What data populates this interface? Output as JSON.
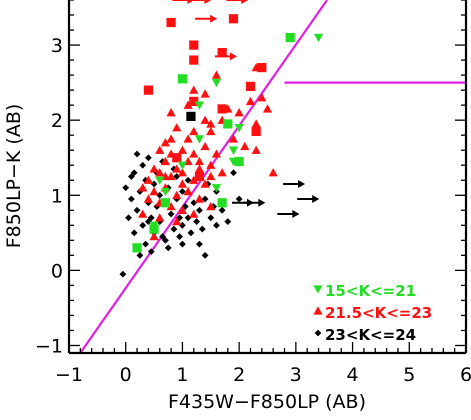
{
  "chart_data": {
    "type": "scatter",
    "title": "",
    "xlabel": "F435W−F850LP (AB)",
    "ylabel": "F850LP−K (AB)",
    "xlim": [
      -1,
      6
    ],
    "ylim": [
      -1.1,
      3.6
    ],
    "x_ticks": [
      -1,
      0,
      1,
      2,
      3,
      4,
      5,
      6
    ],
    "x_tick_labels": [
      "−1",
      "0",
      "1",
      "2",
      "3",
      "4",
      "5",
      "6"
    ],
    "y_ticks": [
      -1,
      0,
      1,
      2,
      3
    ],
    "y_tick_labels": [
      "−1",
      "0",
      "1",
      "2",
      "3"
    ],
    "grid": false,
    "selection_lines": [
      {
        "color": "#e020e0",
        "points": [
          [
            -0.8,
            -1.1
          ],
          [
            3.55,
            3.6
          ]
        ]
      },
      {
        "color": "#e020e0",
        "points": [
          [
            2.8,
            2.5
          ],
          [
            6.0,
            2.5
          ]
        ]
      }
    ],
    "legend": {
      "placement": "bottom-right",
      "entries": [
        {
          "label": "15<K<=21",
          "marker": "triangle-down",
          "color": "#22dd22"
        },
        {
          "label": "21.5<K<=23",
          "marker": "triangle-up",
          "color": "#ff1010"
        },
        {
          "label": "23<K<=24",
          "marker": "diamond",
          "color": "#000000"
        }
      ]
    },
    "series": [
      {
        "name": "15<K<=21",
        "color": "#22dd22",
        "marker": "triangle-down",
        "points": [
          [
            3.4,
            3.1
          ],
          [
            1.6,
            2.5
          ],
          [
            1.3,
            2.2
          ],
          [
            2.0,
            1.9
          ],
          [
            1.3,
            1.75
          ],
          [
            1.9,
            1.6
          ],
          [
            1.9,
            1.45
          ],
          [
            1.0,
            1.4
          ],
          [
            0.6,
            1.2
          ],
          [
            0.7,
            1.05
          ],
          [
            0.5,
            0.6
          ],
          [
            1.6,
            1.1
          ]
        ]
      },
      {
        "name": "15<K<=21",
        "color": "#22dd22",
        "marker": "square",
        "points": [
          [
            2.9,
            3.1
          ],
          [
            1.0,
            2.55
          ],
          [
            1.8,
            1.95
          ],
          [
            1.7,
            0.9
          ],
          [
            0.7,
            0.9
          ],
          [
            0.2,
            0.3
          ],
          [
            0.5,
            0.55
          ],
          [
            2.0,
            1.45
          ]
        ]
      },
      {
        "name": "21.5<K<=23",
        "color": "#ff1010",
        "marker": "triangle-up",
        "points": [
          [
            0.8,
            2.1
          ],
          [
            1.2,
            2.4
          ],
          [
            1.1,
            2.2
          ],
          [
            1.6,
            2.6
          ],
          [
            1.4,
            2.35
          ],
          [
            2.0,
            2.1
          ],
          [
            2.2,
            2.25
          ],
          [
            1.7,
            2.0
          ],
          [
            2.4,
            2.3
          ],
          [
            2.5,
            2.15
          ],
          [
            2.3,
            1.95
          ],
          [
            1.4,
            2.0
          ],
          [
            0.9,
            1.9
          ],
          [
            1.2,
            1.85
          ],
          [
            0.8,
            1.75
          ],
          [
            1.0,
            1.6
          ],
          [
            1.4,
            1.65
          ],
          [
            1.6,
            1.55
          ],
          [
            0.6,
            1.6
          ],
          [
            0.7,
            1.45
          ],
          [
            0.9,
            1.5
          ],
          [
            1.1,
            1.45
          ],
          [
            1.3,
            1.35
          ],
          [
            1.5,
            1.4
          ],
          [
            0.5,
            1.35
          ],
          [
            0.4,
            1.2
          ],
          [
            0.6,
            1.3
          ],
          [
            0.8,
            1.25
          ],
          [
            1.0,
            1.3
          ],
          [
            1.2,
            1.2
          ],
          [
            1.4,
            1.15
          ],
          [
            1.7,
            1.3
          ],
          [
            0.5,
            1.05
          ],
          [
            0.7,
            1.1
          ],
          [
            0.9,
            1.0
          ],
          [
            1.1,
            1.05
          ],
          [
            1.3,
            0.95
          ],
          [
            0.6,
            0.9
          ],
          [
            0.8,
            0.85
          ],
          [
            1.0,
            0.8
          ],
          [
            0.4,
            0.95
          ],
          [
            0.3,
            0.75
          ],
          [
            0.6,
            0.7
          ],
          [
            0.9,
            0.65
          ],
          [
            1.2,
            0.75
          ],
          [
            1.5,
            0.85
          ],
          [
            2.1,
            1.65
          ],
          [
            2.3,
            1.6
          ],
          [
            0.5,
            0.45
          ],
          [
            1.8,
            2.15
          ],
          [
            1.5,
            1.85
          ],
          [
            0.7,
            1.7
          ],
          [
            1.1,
            1.75
          ],
          [
            1.9,
            1.75
          ],
          [
            1.2,
            1.55
          ],
          [
            0.8,
            1.55
          ],
          [
            2.6,
            1.3
          ],
          [
            0.9,
            1.35
          ],
          [
            0.3,
            1.1
          ],
          [
            1.3,
            1.45
          ],
          [
            2.3,
            2.7
          ],
          [
            1.5,
            1.95
          ],
          [
            1.0,
            1.15
          ],
          [
            0.7,
            1.25
          ],
          [
            1.5,
            1.25
          ]
        ]
      },
      {
        "name": "21.5<K<=23",
        "color": "#ff1010",
        "marker": "square",
        "points": [
          [
            0.4,
            2.4
          ],
          [
            1.2,
            2.8
          ],
          [
            1.9,
            3.35
          ],
          [
            1.7,
            2.9
          ],
          [
            1.2,
            3.0
          ],
          [
            2.4,
            2.7
          ],
          [
            2.2,
            2.45
          ],
          [
            1.2,
            2.25
          ],
          [
            1.7,
            2.15
          ],
          [
            2.3,
            1.85
          ],
          [
            1.3,
            1.25
          ],
          [
            0.8,
            3.3
          ],
          [
            0.9,
            1.5
          ]
        ]
      },
      {
        "name": "21.5<K<=23",
        "color": "#ff1010",
        "marker": "right-arrow",
        "points": [
          [
            1.0,
            3.6
          ],
          [
            1.3,
            3.6
          ],
          [
            1.4,
            3.35
          ],
          [
            1.75,
            2.85
          ],
          [
            1.95,
            3.6
          ]
        ]
      },
      {
        "name": "23<K<=24",
        "color": "#000000",
        "marker": "diamond",
        "points": [
          [
            0.0,
            1.1
          ],
          [
            0.1,
            0.95
          ],
          [
            0.15,
            1.3
          ],
          [
            0.2,
            0.8
          ],
          [
            0.25,
            1.05
          ],
          [
            0.3,
            0.6
          ],
          [
            0.35,
            1.2
          ],
          [
            0.4,
            0.9
          ],
          [
            0.45,
            0.7
          ],
          [
            0.5,
            1.15
          ],
          [
            0.5,
            0.5
          ],
          [
            0.55,
            0.85
          ],
          [
            0.6,
            1.0
          ],
          [
            0.6,
            0.65
          ],
          [
            0.65,
            0.45
          ],
          [
            0.7,
            0.9
          ],
          [
            0.75,
            1.1
          ],
          [
            0.8,
            0.75
          ],
          [
            0.85,
            0.55
          ],
          [
            0.9,
            0.95
          ],
          [
            0.95,
            0.7
          ],
          [
            1.0,
            1.05
          ],
          [
            1.0,
            0.6
          ],
          [
            1.05,
            0.85
          ],
          [
            1.1,
            0.7
          ],
          [
            1.15,
            0.5
          ],
          [
            1.2,
            0.9
          ],
          [
            1.25,
            0.65
          ],
          [
            1.3,
            0.8
          ],
          [
            1.35,
            0.55
          ],
          [
            1.4,
            0.95
          ],
          [
            1.5,
            0.7
          ],
          [
            1.55,
            0.85
          ],
          [
            1.6,
            0.6
          ],
          [
            1.7,
            0.8
          ],
          [
            1.8,
            0.65
          ],
          [
            0.3,
            1.4
          ],
          [
            0.4,
            1.5
          ],
          [
            0.55,
            1.3
          ],
          [
            0.2,
            1.55
          ],
          [
            0.35,
            0.35
          ],
          [
            0.45,
            0.25
          ],
          [
            0.25,
            0.2
          ],
          [
            0.15,
            0.5
          ],
          [
            0.05,
            0.7
          ],
          [
            0.75,
            0.3
          ],
          [
            1.0,
            0.35
          ],
          [
            1.3,
            0.35
          ],
          [
            1.4,
            0.2
          ],
          [
            0.9,
            1.25
          ],
          [
            1.1,
            1.2
          ],
          [
            0.65,
            1.45
          ],
          [
            0.85,
            1.35
          ],
          [
            2.0,
            0.95
          ],
          [
            1.6,
            1.05
          ],
          [
            0.7,
            0.4
          ],
          [
            -0.05,
            -0.05
          ],
          [
            1.9,
            1.3
          ],
          [
            1.45,
            1.15
          ],
          [
            0.4,
            0.65
          ],
          [
            0.95,
            0.45
          ],
          [
            0.1,
            1.25
          ]
        ]
      },
      {
        "name": "23<K<=24",
        "color": "#000000",
        "marker": "square",
        "points": [
          [
            1.15,
            2.05
          ]
        ]
      },
      {
        "name": "23<K<=24",
        "color": "#000000",
        "marker": "right-arrow",
        "points": [
          [
            2.85,
            0.75
          ],
          [
            2.95,
            1.15
          ],
          [
            2.05,
            0.9
          ],
          [
            2.25,
            0.9
          ],
          [
            3.2,
            0.95
          ]
        ]
      }
    ]
  }
}
